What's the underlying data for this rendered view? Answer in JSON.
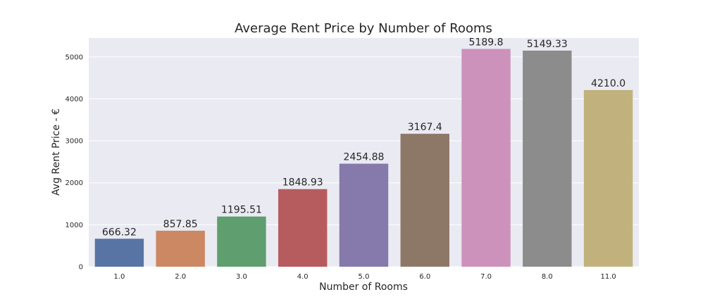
{
  "chart_data": {
    "type": "bar",
    "title": "Average Rent Price by Number of Rooms",
    "xlabel": "Number of Rooms",
    "ylabel": "Avg Rent Price - €",
    "categories": [
      "1.0",
      "2.0",
      "3.0",
      "4.0",
      "5.0",
      "6.0",
      "7.0",
      "8.0",
      "11.0"
    ],
    "values": [
      666.32,
      857.85,
      1195.51,
      1848.93,
      2454.88,
      3167.4,
      5189.8,
      5149.33,
      4210.0
    ],
    "value_labels": [
      "666.32",
      "857.85",
      "1195.51",
      "1848.93",
      "2454.88",
      "3167.4",
      "5189.8",
      "5149.33",
      "4210.0"
    ],
    "yticks": [
      0,
      1000,
      2000,
      3000,
      4000,
      5000
    ],
    "ylim": [
      0,
      5450
    ],
    "grid": true,
    "colors": [
      "#5874a5",
      "#cc8863",
      "#5f9e6e",
      "#b65c5f",
      "#857aab",
      "#8d7867",
      "#cd92bc",
      "#8c8c8c",
      "#c1b27d"
    ],
    "background": "#eaeaf2"
  }
}
